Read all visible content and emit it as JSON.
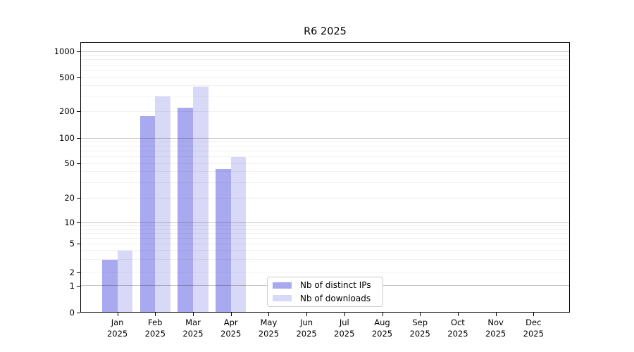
{
  "figure": {
    "title": "R6 2025"
  },
  "legend": {
    "items": [
      {
        "label": "Nb of distinct IPs",
        "color": "#a9a9f0"
      },
      {
        "label": "Nb of downloads",
        "color": "#d8d8f7"
      }
    ]
  },
  "chart_data": {
    "type": "bar",
    "title": "R6 2025",
    "categories": [
      "Jan",
      "Feb",
      "Mar",
      "Apr",
      "May",
      "Jun",
      "Jul",
      "Aug",
      "Sep",
      "Oct",
      "Nov",
      "Dec"
    ],
    "year_label": "2025",
    "series": [
      {
        "name": "Nb of distinct IPs",
        "color": "#a9a9f0",
        "values": [
          3,
          175,
          220,
          43,
          0,
          0,
          0,
          0,
          0,
          0,
          0,
          0
        ]
      },
      {
        "name": "Nb of downloads",
        "color": "#d8d8f7",
        "values": [
          4,
          300,
          390,
          60,
          0,
          0,
          0,
          0,
          0,
          0,
          0,
          0
        ]
      }
    ],
    "yticks": [
      0,
      1,
      2,
      5,
      10,
      20,
      50,
      100,
      200,
      500,
      1000
    ],
    "ylim": [
      0,
      1000
    ],
    "yscale": "log-like (1-2-5 ticks, 0 baseline)",
    "xlabel": "",
    "ylabel": "",
    "grid": true,
    "legend_position": "inside, lower center-left"
  }
}
